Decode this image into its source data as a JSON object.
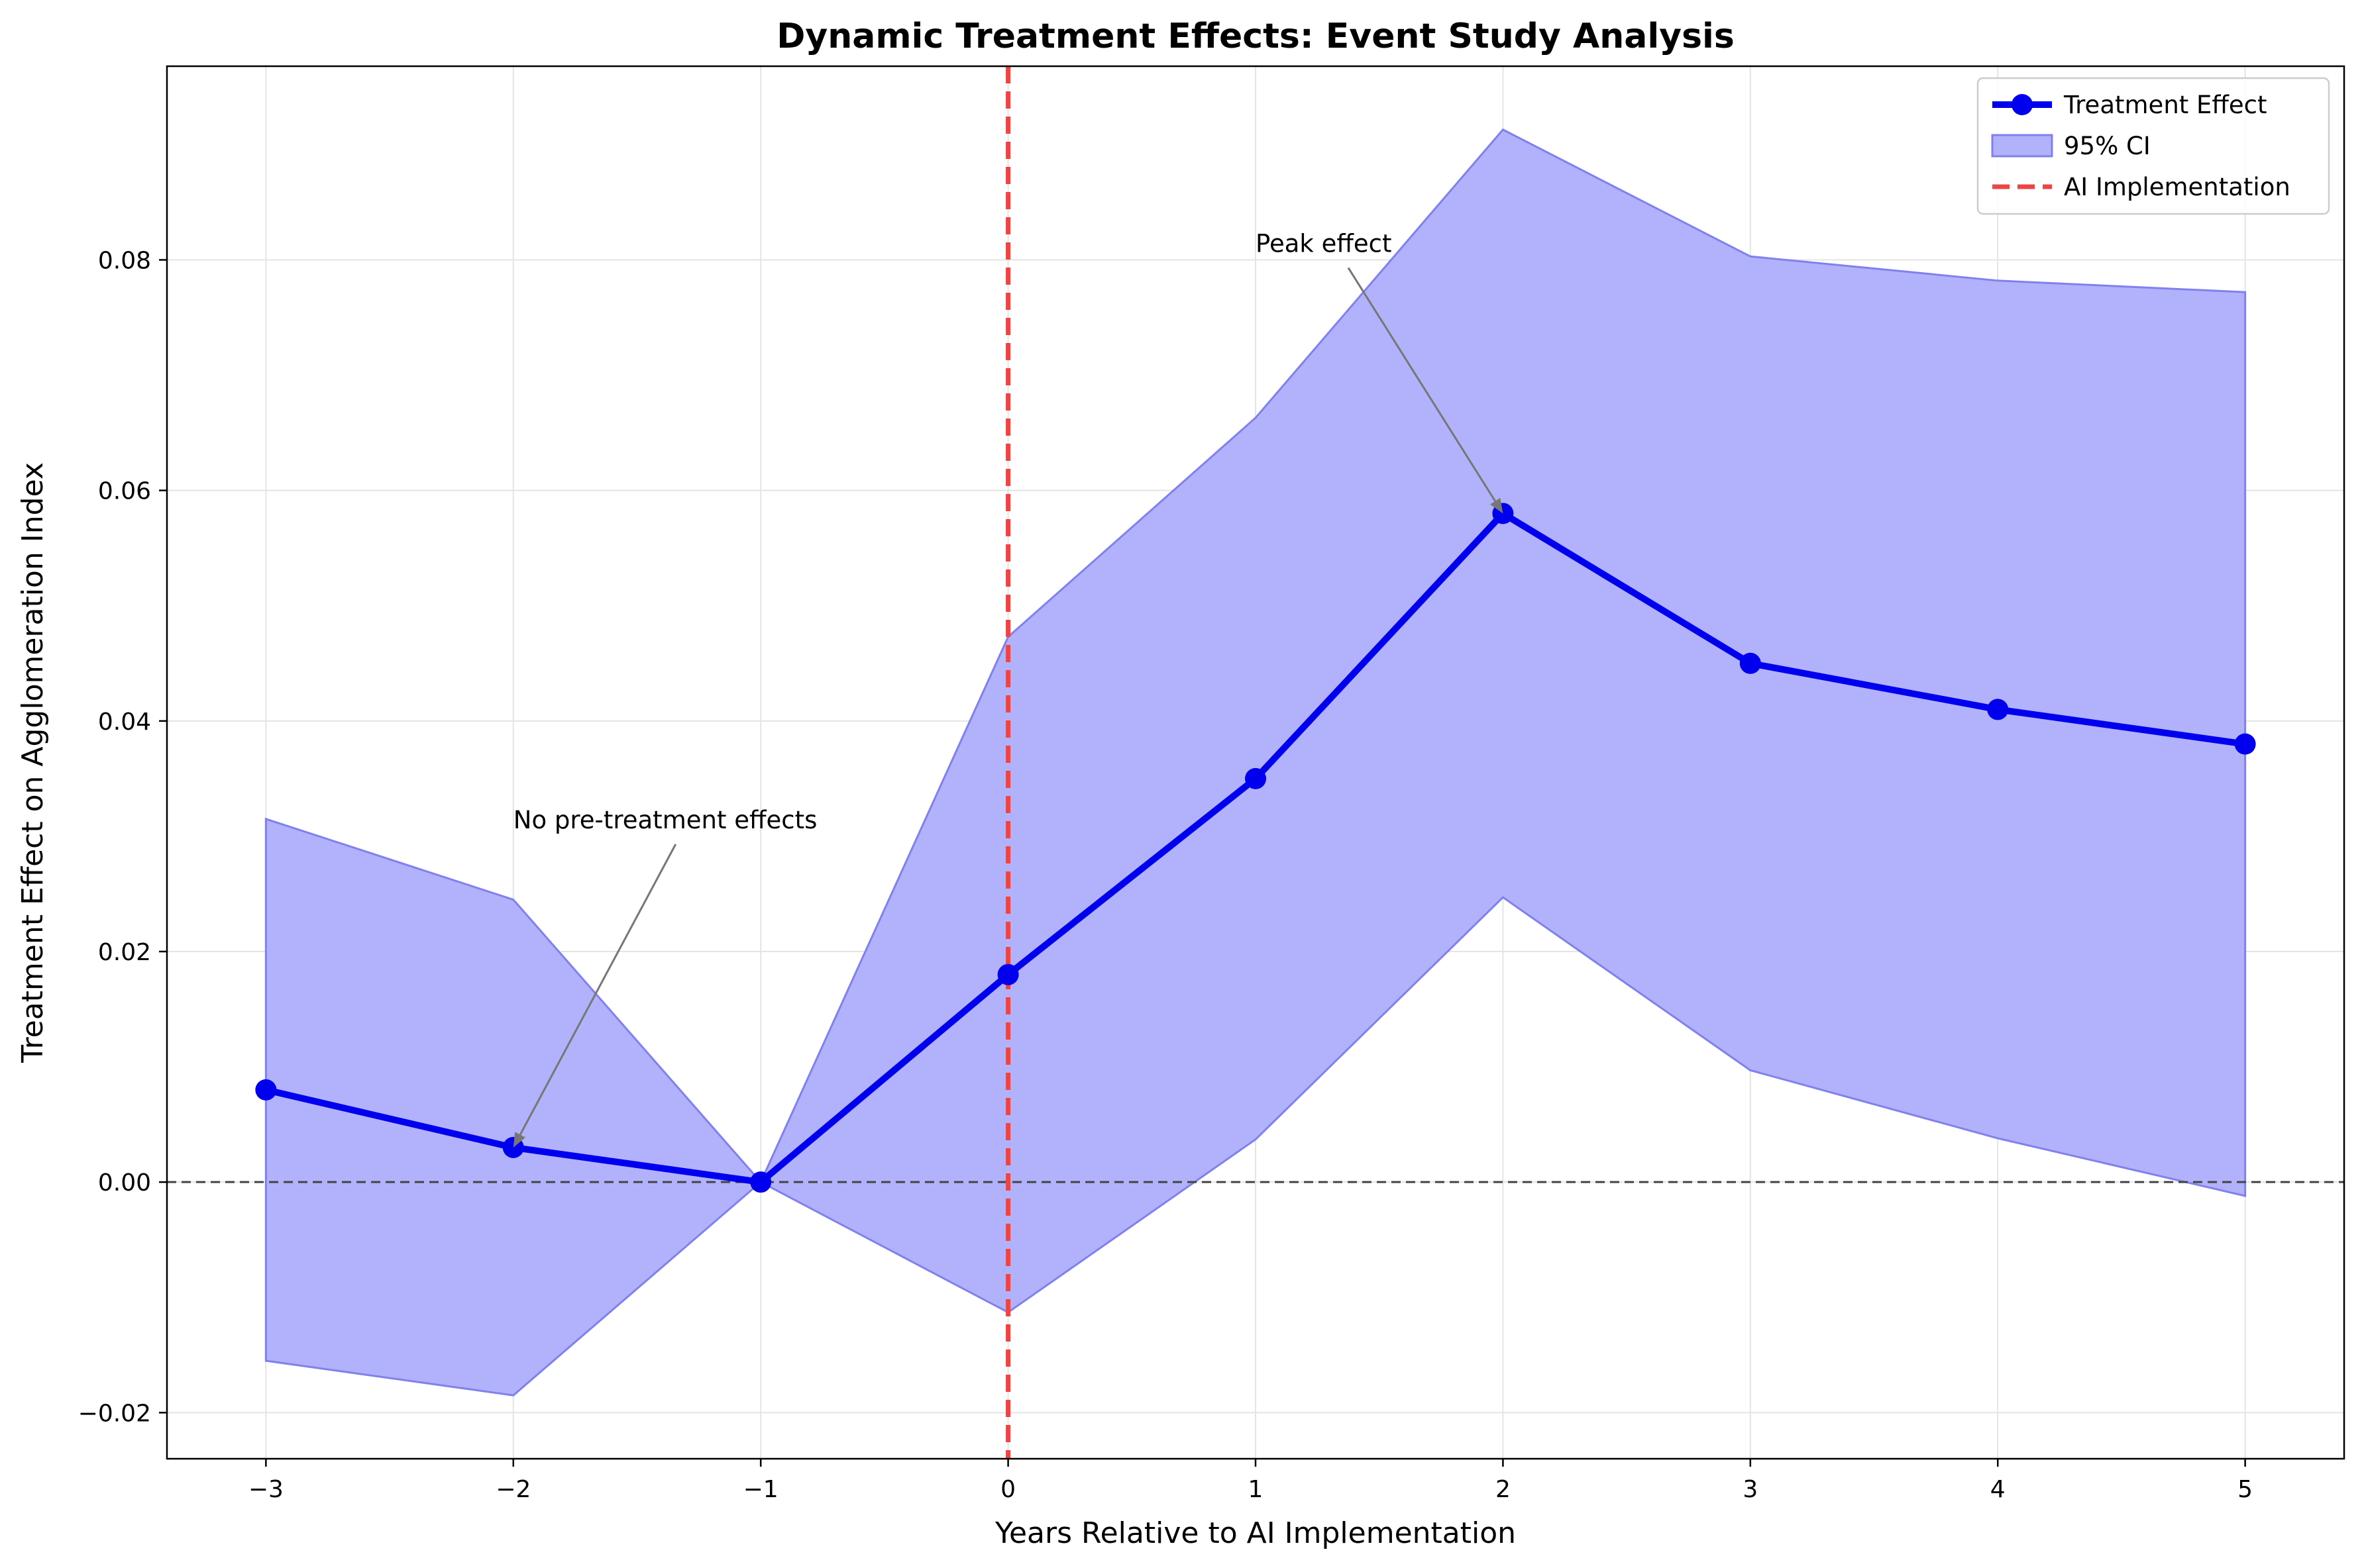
{
  "chart_data": {
    "type": "line",
    "title": "Dynamic Treatment Effects: Event Study Analysis",
    "xlabel": "Years Relative to AI Implementation",
    "ylabel": "Treatment Effect on Agglomeration Index",
    "xlim": [
      -3.4,
      5.4
    ],
    "ylim": [
      -0.024,
      0.0968
    ],
    "x_ticks": [
      -3,
      -2,
      -1,
      0,
      1,
      2,
      3,
      4,
      5
    ],
    "x_tick_labels": [
      "−3",
      "−2",
      "−1",
      "0",
      "1",
      "2",
      "3",
      "4",
      "5"
    ],
    "y_ticks": [
      -0.02,
      0.0,
      0.02,
      0.04,
      0.06,
      0.08
    ],
    "y_tick_labels": [
      "−0.02",
      "0.00",
      "0.02",
      "0.04",
      "0.06",
      "0.08"
    ],
    "grid": true,
    "series": [
      {
        "name": "Treatment Effect",
        "color": "#0000ee",
        "x": [
          -3,
          -2,
          -1,
          0,
          1,
          2,
          3,
          4,
          5
        ],
        "values": [
          0.008,
          0.003,
          0.0,
          0.018,
          0.035,
          0.058,
          0.045,
          0.041,
          0.038
        ]
      }
    ],
    "confidence_band": {
      "name": "95% CI",
      "color": "#b2b2fc",
      "edge_color": "#8080ee",
      "x": [
        -3,
        -2,
        -1,
        0,
        1,
        2,
        3,
        4,
        5
      ],
      "lower": [
        -0.0155,
        -0.0185,
        0.0,
        -0.0113,
        0.0037,
        0.0247,
        0.0097,
        0.0038,
        -0.0012
      ],
      "upper": [
        0.0315,
        0.0245,
        0.0,
        0.0473,
        0.0663,
        0.0913,
        0.0803,
        0.0782,
        0.0772
      ]
    },
    "reference_lines": [
      {
        "name": "AI Implementation",
        "orientation": "vertical",
        "x": 0,
        "color": "#ee4444",
        "style": "dashed"
      },
      {
        "name": "zero",
        "orientation": "horizontal",
        "y": 0,
        "color": "#444444",
        "style": "dashed"
      }
    ],
    "annotations": [
      {
        "text": "No pre-treatment effects",
        "text_x": -2.0,
        "text_y": 0.03,
        "point_x": -2,
        "point_y": 0.003
      },
      {
        "text": "Peak effect",
        "text_x": 1.0,
        "text_y": 0.08,
        "point_x": 2,
        "point_y": 0.058
      }
    ],
    "legend": {
      "position": "top-right",
      "entries": [
        "Treatment Effect",
        "95% CI",
        "AI Implementation"
      ]
    }
  }
}
